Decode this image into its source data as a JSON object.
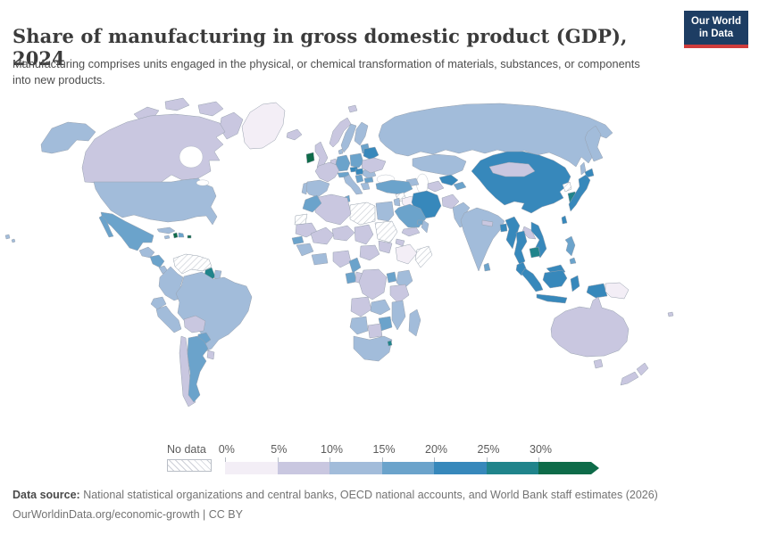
{
  "header": {
    "title": "Share of manufacturing in gross domestic product (GDP), 2024",
    "subtitle": "Manufacturing comprises units engaged in the physical, or chemical transformation of materials, substances, or components into new products.",
    "logo": {
      "line1": "Our World",
      "line2": "in Data",
      "bg_color": "#1d3d63",
      "accent_color": "#cf3c3c"
    }
  },
  "footer": {
    "source_label": "Data source:",
    "source_text": " National statistical organizations and central banks, OECD national accounts, and World Bank staff estimates (2026)",
    "link_text": "OurWorldinData.org/economic-growth",
    "license_text": " | CC BY"
  },
  "chart_data": {
    "type": "heatmap",
    "subtype": "world-choropleth",
    "title": "Share of manufacturing in gross domestic product (GDP)",
    "year": "2024",
    "unit": "% of GDP",
    "legend": {
      "no_data_label": "No data",
      "tick_labels": [
        "0%",
        "5%",
        "10%",
        "15%",
        "20%",
        "25%",
        "30%"
      ],
      "bins": [
        {
          "label": "No data",
          "color": "hatch",
          "range": null
        },
        {
          "label": "0-5%",
          "color": "#f3eef6",
          "range": [
            0,
            5
          ]
        },
        {
          "label": "5-10%",
          "color": "#c9c7e0",
          "range": [
            5,
            10
          ]
        },
        {
          "label": "10-15%",
          "color": "#a2bcda",
          "range": [
            10,
            15
          ]
        },
        {
          "label": "15-20%",
          "color": "#6ba3cb",
          "range": [
            15,
            20
          ]
        },
        {
          "label": "20-25%",
          "color": "#3788bb",
          "range": [
            20,
            25
          ]
        },
        {
          "label": "25-30%",
          "color": "#20848b",
          "range": [
            25,
            30
          ]
        },
        {
          "label": "30%+",
          "color": "#0e6b49",
          "range": [
            30,
            null
          ]
        }
      ]
    },
    "regions": {
      "alaska": "10-15%",
      "canada": "5-10%",
      "canadian-arctic": "5-10%",
      "greenland": "0-5%",
      "usa": "10-15%",
      "hawaii": "10-15%",
      "mexico": "15-20%",
      "guatemala": "10-15%",
      "honduras-nicaragua": "15-20%",
      "costa-rica": "10-15%",
      "panama": "0-5%",
      "cuba": "10-15%",
      "jamaica": "10-15%",
      "haiti": "30%+",
      "dominican-republic": "15-20%",
      "puerto-rico": "30%+",
      "venezuela": "No data",
      "guyana": "25-30%",
      "suriname": "10-15%",
      "colombia": "10-15%",
      "ecuador": "10-15%",
      "peru": "10-15%",
      "brazil": "10-15%",
      "bolivia": "5-10%",
      "paraguay": "15-20%",
      "chile": "5-10%",
      "argentina": "15-20%",
      "uruguay": "5-10%",
      "iceland": "5-10%",
      "ireland": "30%+",
      "uk": "5-10%",
      "norway": "5-10%",
      "sweden": "10-15%",
      "finland": "10-15%",
      "denmark": "10-15%",
      "baltic-states": "15-20%",
      "benelux": "5-10%",
      "france": "5-10%",
      "spain": "10-15%",
      "portugal": "10-15%",
      "germany": "15-20%",
      "poland": "15-20%",
      "czechia": "20-25%",
      "switzerland-austria": "15-20%",
      "italy": "10-15%",
      "hungary-slovakia": "20-25%",
      "balkans": "15-20%",
      "romania": "10-15%",
      "bulgaria": "15-20%",
      "greece": "10-15%",
      "belarus": "20-25%",
      "ukraine": "5-10%",
      "russia": "10-15%",
      "kazakhstan": "10-15%",
      "uzbekistan": "20-25%",
      "turkmenistan": "5-10%",
      "kyrgyzstan-tajikistan": "15-20%",
      "caucasus": "10-15%",
      "turkey": "15-20%",
      "syria": "No data",
      "iraq": "0-5%",
      "iran": "20-25%",
      "afghanistan": "5-10%",
      "pakistan": "10-15%",
      "india": "10-15%",
      "nepal": "5-10%",
      "bangladesh": "20-25%",
      "sri-lanka": "15-20%",
      "myanmar": "20-25%",
      "thailand": "20-25%",
      "laos": "5-10%",
      "vietnam": "20-25%",
      "cambodia": "25-30%",
      "malaysia": "20-25%",
      "indonesia": "20-25%",
      "philippines": "15-20%",
      "china": "20-25%",
      "mongolia": "5-10%",
      "north-korea": "No data",
      "south-korea": "25-30%",
      "japan": "20-25%",
      "taiwan": "20-25%",
      "papua-new-guinea": "0-5%",
      "australia": "5-10%",
      "new-zealand": "5-10%",
      "fiji": "5-10%",
      "morocco": "15-20%",
      "western-sahara": "No data",
      "algeria": "5-10%",
      "tunisia": "15-20%",
      "libya": "No data",
      "egypt": "10-15%",
      "sudan": "No data",
      "south-sudan": "5-10%",
      "eritrea": "5-10%",
      "ethiopia": "0-5%",
      "somalia": "No data",
      "mauritania": "5-10%",
      "mali": "5-10%",
      "niger": "5-10%",
      "chad": "5-10%",
      "senegal": "15-20%",
      "guinea-region": "10-15%",
      "ivory-coast-ghana": "10-15%",
      "nigeria": "5-10%",
      "cameroon": "15-20%",
      "central-african-republic": "5-10%",
      "gabon": "15-20%",
      "congo": "5-10%",
      "drc": "5-10%",
      "uganda": "15-20%",
      "kenya": "10-15%",
      "tanzania": "5-10%",
      "angola": "5-10%",
      "zambia": "10-15%",
      "mozambique": "10-15%",
      "zimbabwe": "15-20%",
      "namibia": "10-15%",
      "botswana": "5-10%",
      "south-africa": "10-15%",
      "eswatini": "25-30%",
      "madagascar": "10-15%",
      "saudi-arabia": "15-20%",
      "yemen": "5-10%",
      "oman": "10-15%",
      "uae": "15-20%",
      "israel-jordan": "10-15%"
    }
  }
}
